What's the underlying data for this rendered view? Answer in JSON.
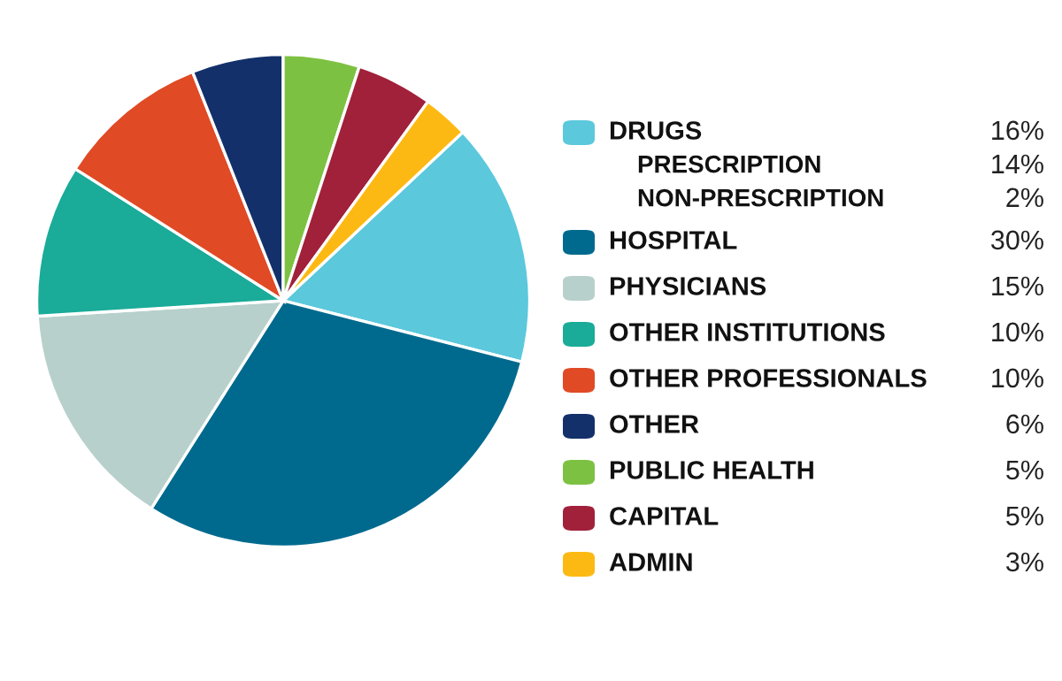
{
  "chart_data": {
    "type": "pie",
    "categories": [
      "DRUGS",
      "HOSPITAL",
      "PHYSICIANS",
      "OTHER INSTITUTIONS",
      "OTHER PROFESSIONALS",
      "OTHER",
      "PUBLIC HEALTH",
      "CAPITAL",
      "ADMIN"
    ],
    "values": [
      16,
      30,
      15,
      10,
      10,
      6,
      5,
      5,
      3
    ],
    "colors": [
      "#5bc8dc",
      "#006a8e",
      "#b8d0cc",
      "#1aab99",
      "#e04a25",
      "#13306a",
      "#7dc142",
      "#a1203a",
      "#fdb913"
    ],
    "value_labels": [
      "16%",
      "30%",
      "15%",
      "10%",
      "10%",
      "6%",
      "5%",
      "5%",
      "3%"
    ],
    "annotations": [
      "PRESCRIPTION",
      "14%",
      "NON-PRESCRIPTION",
      "2%"
    ],
    "legend": "right"
  }
}
